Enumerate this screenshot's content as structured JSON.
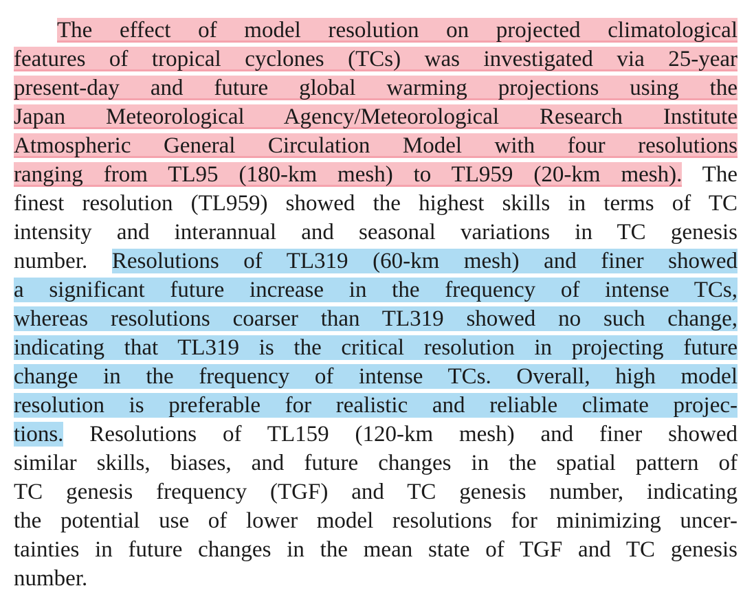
{
  "paragraph": {
    "lines": [
      {
        "segments": [
          {
            "text": "The effect of model resolution on projected climatological",
            "highlight": "red"
          }
        ]
      },
      {
        "segments": [
          {
            "text": "features of tropical cyclones (TCs) was investigated via 25-year",
            "highlight": "red"
          }
        ]
      },
      {
        "segments": [
          {
            "text": "present-day and future global warming projections using the",
            "highlight": "red"
          }
        ]
      },
      {
        "segments": [
          {
            "text": "Japan Meteorological Agency/Meteorological Research Institute",
            "highlight": "red"
          }
        ]
      },
      {
        "segments": [
          {
            "text": "Atmospheric General Circulation Model with four resolutions",
            "highlight": "red"
          }
        ]
      },
      {
        "segments": [
          {
            "text": "ranging from TL95 (180-km mesh) to TL959 (20-km mesh).",
            "highlight": "red"
          },
          {
            "text": " The"
          }
        ]
      },
      {
        "segments": [
          {
            "text": "finest resolution (TL959) showed the highest skills in terms of TC"
          }
        ]
      },
      {
        "segments": [
          {
            "text": "intensity and interannual and seasonal variations in TC genesis"
          }
        ]
      },
      {
        "segments": [
          {
            "text": "number. "
          },
          {
            "text": "Resolutions of TL319 (60-km mesh) and finer showed",
            "highlight": "blue"
          }
        ]
      },
      {
        "segments": [
          {
            "text": "a significant future increase in the frequency of intense TCs,",
            "highlight": "blue"
          }
        ]
      },
      {
        "segments": [
          {
            "text": "whereas resolutions coarser than TL319 showed no such change,",
            "highlight": "blue"
          }
        ]
      },
      {
        "segments": [
          {
            "text": "indicating that TL319 is the critical resolution in projecting future",
            "highlight": "blue"
          }
        ]
      },
      {
        "segments": [
          {
            "text": "change in the frequency of intense TCs. Overall, high model",
            "highlight": "blue"
          }
        ]
      },
      {
        "segments": [
          {
            "text": "resolution is preferable for realistic and reliable climate projec-",
            "highlight": "blue"
          }
        ]
      },
      {
        "segments": [
          {
            "text": "tions.",
            "highlight": "blue"
          },
          {
            "text": " Resolutions of TL159 (120-km mesh) and finer showed"
          }
        ]
      },
      {
        "segments": [
          {
            "text": "similar skills, biases, and future changes in the spatial pattern of"
          }
        ]
      },
      {
        "segments": [
          {
            "text": "TC genesis frequency (TGF) and TC genesis number, indicating"
          }
        ]
      },
      {
        "segments": [
          {
            "text": "the potential use of lower model resolutions for minimizing uncer-"
          }
        ]
      },
      {
        "segments": [
          {
            "text": "tainties in future changes in the mean state of TGF and TC genesis"
          }
        ]
      },
      {
        "segments": [
          {
            "text": "number."
          }
        ]
      }
    ]
  }
}
